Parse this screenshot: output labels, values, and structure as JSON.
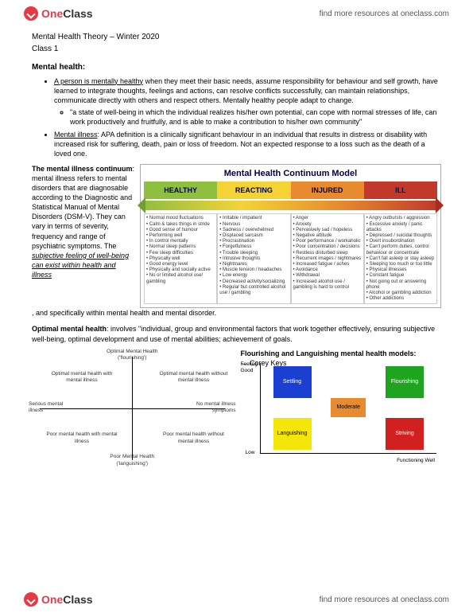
{
  "brand": {
    "one": "One",
    "class": "Class",
    "findText": "find more resources at oneclass.com"
  },
  "doc": {
    "title": "Mental Health Theory – Winter 2020",
    "classLine": "Class 1",
    "mhHeader": "Mental health:",
    "bullet1Lead": "A person is mentally healthy",
    "bullet1Rest": " when they meet their basic needs, assume responsibility for behaviour and self growth, have learned to integrate thoughts, feelings and actions, can resolve conflicts successfully, can maintain relationships, communicate directly with others and respect others. Mentally healthy people adapt to change.",
    "bullet1Sub": "\"a state of well-being in which the individual realizes his/her own potential, can cope with normal stresses of life, can work productively and fruitfully, and is able to make a contribution to his/her own community\"",
    "bullet2Lead": "Mental illness",
    "bullet2Rest": ": APA definition is a clinically significant behaviour in an individual that results in distress or disability with increased risk for suffering, death, pain or loss of freedom. Not an expected response to a loss such as the death of a loved one.",
    "continuumParaLead": "The mental illness continuum",
    "continuumPara1": ": mental illness refers to mental disorders that are diagnosable according to the Diagnostic and Statistical Manual of Mental Disorders (DSM-V). They can vary in terms of severity, frequency and range of psychiatric symptoms. The ",
    "continuumParaItalic": "subjective feeling of well-being can exist within health and illness",
    "continuumPara2": ", and specifically within mental health and mental disorder.",
    "optimalLead": "Optimal mental health",
    "optimalRest": ": involves \"individual, group and environmental factors that work together effectively, ensuring subjective well-being, optimal development and use of mental abilities; achievement of goals.",
    "modelsHeader": "Flourishing and Languishing mental health models:",
    "coreyKeys": "← Corey Keys"
  },
  "continuum": {
    "title": "Mental Health Continuum Model",
    "segments": [
      {
        "label": "HEALTHY",
        "color": "#8fbf3f"
      },
      {
        "label": "REACTING",
        "color": "#f5d336"
      },
      {
        "label": "INJURED",
        "color": "#e78b2e"
      },
      {
        "label": "ILL",
        "color": "#c0392b"
      }
    ],
    "arrowLeftColor": "#6fa030",
    "arrowRightColor": "#a82d20",
    "arrowGradient": "linear-gradient(to right,#8fbf3f,#f5d336,#e78b2e,#c0392b)",
    "columns": [
      [
        "Normal mood fluctuations",
        "Calm & takes things in stride",
        "Good sense of humour",
        "Performing well",
        "In control mentally",
        "Normal sleep patterns",
        "Few sleep difficulties",
        "Physically well",
        "Good energy level",
        "Physically and socially active",
        "No or limited alcohol use/ gambling"
      ],
      [
        "Irritable / impatient",
        "Nervous",
        "Sadness / overwhelmed",
        "Displaced sarcasm",
        "Procrastination",
        "Forgetfulness",
        "Trouble sleeping",
        "Intrusive thoughts",
        "Nightmares",
        "Muscle tension / headaches",
        "Low energy",
        "Decreased activity/socializing",
        "Regular but controlled alcohol use / gambling"
      ],
      [
        "Anger",
        "Anxiety",
        "Pervasively sad / hopeless",
        "Negative attitude",
        "Poor performance / workaholic",
        "Poor concentration / decisions",
        "Restless disturbed sleep",
        "Recurrent images / nightmares",
        "Increased fatigue / aches",
        "Avoidance",
        "Withdrawal",
        "Increased alcohol use / gambling is hard to control"
      ],
      [
        "Angry outbursts / aggression",
        "Excessive anxiety / panic attacks",
        "Depressed / suicidal thoughts",
        "Overt insubordination",
        "Can't perform duties, control behaviour or concentrate",
        "Can't fall asleep or stay asleep",
        "Sleeping too much or too little",
        "Physical illnesses",
        "Constant fatigue",
        "Not going out or answering phone",
        "Alcohol or gambling addiction",
        "Other addictions"
      ]
    ]
  },
  "quadLeft": {
    "top": "Optimal Mental Health ('flourishing')",
    "bottom": "Poor Mental Health ('languishing')",
    "left": "Serious mental illness",
    "right": "No mental illness symptoms",
    "q1": "Optimal mental health with mental illness",
    "q2": "Optimal mental health without mental illness",
    "q3": "Poor mental health with mental illness",
    "q4": "Poor mental health without mental illness"
  },
  "keyes": {
    "yTop": "Feeling Good",
    "yBottom": "Low",
    "xRight": "Functioning Well",
    "boxes": {
      "settling": {
        "label": "Settling",
        "color": "#1a3fd1"
      },
      "flourishing": {
        "label": "Flourishing",
        "color": "#1fa41f"
      },
      "languishing": {
        "label": "Languishing",
        "color": "#f5e60a",
        "text": "#000000"
      },
      "striving": {
        "label": "Striving",
        "color": "#d1201f"
      },
      "moderate": {
        "label": "Moderate",
        "color": "#e78b2e"
      }
    }
  }
}
